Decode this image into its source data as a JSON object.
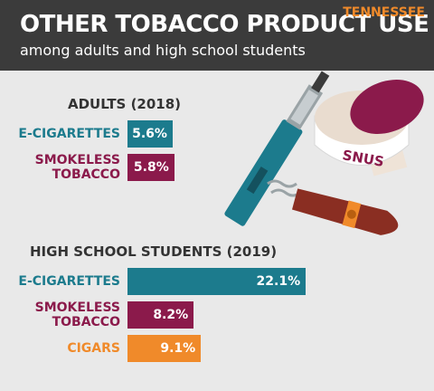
{
  "header": {
    "title": "OTHER TOBACCO PRODUCT USE",
    "subtitle": "among adults and high school students",
    "state": "TENNESSEE"
  },
  "illustration": {
    "tin_label": "SNUS"
  },
  "chart_data": [
    {
      "type": "bar",
      "orientation": "horizontal",
      "title": "ADULTS (2018)",
      "categories": [
        "E-CIGARETTES",
        "SMOKELESS\nTOBACCO"
      ],
      "values": [
        5.6,
        5.8
      ],
      "value_labels": [
        "5.6%",
        "5.8%"
      ],
      "colors": [
        "#1c7b8d",
        "#8b1a4b"
      ]
    },
    {
      "type": "bar",
      "orientation": "horizontal",
      "title": "HIGH SCHOOL STUDENTS (2019)",
      "categories": [
        "E-CIGARETTES",
        "SMOKELESS\nTOBACCO",
        "CIGARS"
      ],
      "values": [
        22.1,
        8.2,
        9.1
      ],
      "value_labels": [
        "22.1%",
        "8.2%",
        "9.1%"
      ],
      "colors": [
        "#1c7b8d",
        "#8b1a4b",
        "#f08a2a"
      ]
    }
  ]
}
